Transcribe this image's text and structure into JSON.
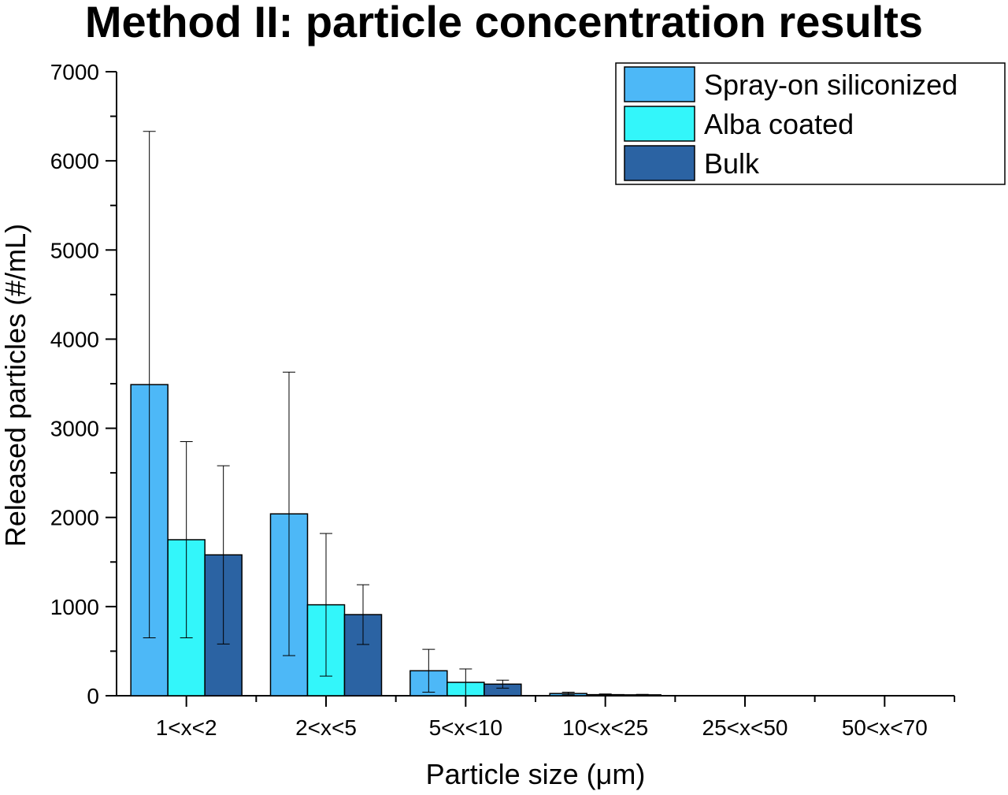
{
  "chart_data": {
    "type": "bar",
    "title": "Method II: particle concentration results",
    "xlabel": "Particle size (μm)",
    "ylabel": "Released particles (#/mL)",
    "ylim": [
      0,
      7000
    ],
    "yticks": [
      "0",
      "1000",
      "2000",
      "3000",
      "4000",
      "5000",
      "6000",
      "7000"
    ],
    "categories": [
      "1<x<2",
      "2<x<5",
      "5<x<10",
      "10<x<25",
      "25<x<50",
      "50<x<70"
    ],
    "legend_position": "top-right",
    "grid": false,
    "series": [
      {
        "name": "Spray-on siliconized",
        "color": "#4db8f7",
        "values": [
          3490,
          2040,
          280,
          25,
          0,
          0
        ],
        "error": [
          2840,
          1590,
          240,
          15,
          0,
          0
        ]
      },
      {
        "name": "Alba coated",
        "color": "#33f6fa",
        "values": [
          1750,
          1020,
          150,
          12,
          0,
          0
        ],
        "error": [
          1100,
          800,
          150,
          8,
          0,
          0
        ]
      },
      {
        "name": "Bulk",
        "color": "#2b63a3",
        "values": [
          1580,
          910,
          130,
          10,
          0,
          0
        ],
        "error": [
          1000,
          335,
          45,
          6,
          0,
          0
        ]
      }
    ]
  }
}
